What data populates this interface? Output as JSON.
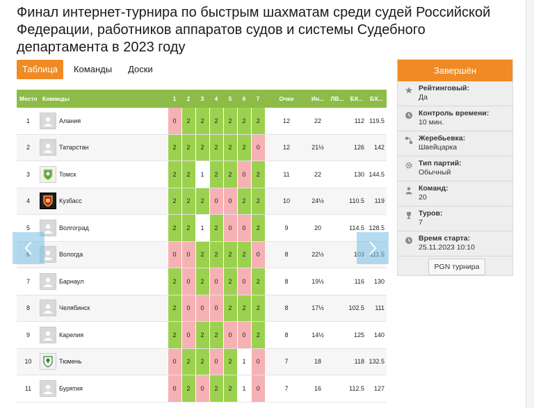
{
  "page": {
    "title": "Финал интернет-турнира по быстрым шахматам среди судей Российской Федерации, работников аппаратов судов и системы Судебного департамента в 2023 году"
  },
  "tabs": [
    {
      "label": "Таблица",
      "active": true
    },
    {
      "label": "Команды",
      "active": false
    },
    {
      "label": "Доски",
      "active": false
    }
  ],
  "table": {
    "headers": {
      "place": "Место",
      "teams": "Команды",
      "rounds": [
        "1",
        "2",
        "3",
        "4",
        "5",
        "6",
        "7"
      ],
      "points": "Очки",
      "ind": "Ин...",
      "lv": "ЛВ...",
      "bh1": "БХ...",
      "bh2": "БХ..."
    },
    "rows": [
      {
        "place": "1",
        "team": "Алания",
        "logo": "placeholder",
        "results": [
          "0",
          "2",
          "2",
          "2",
          "2",
          "2",
          "2"
        ],
        "points": "12",
        "ind": "22",
        "lv": "",
        "bh1": "112",
        "bh2": "119.5"
      },
      {
        "place": "2",
        "team": "Татарстан",
        "logo": "placeholder",
        "results": [
          "2",
          "2",
          "2",
          "2",
          "2",
          "2",
          "0"
        ],
        "points": "12",
        "ind": "21½",
        "lv": "",
        "bh1": "126",
        "bh2": "142"
      },
      {
        "place": "3",
        "team": "Томск",
        "logo": "tomsk-coat",
        "results": [
          "2",
          "2",
          "1",
          "2",
          "2",
          "0",
          "2"
        ],
        "points": "11",
        "ind": "22",
        "lv": "",
        "bh1": "130",
        "bh2": "144.5"
      },
      {
        "place": "4",
        "team": "Кузбасс",
        "logo": "kuzbass-coat",
        "results": [
          "2",
          "2",
          "2",
          "0",
          "0",
          "2",
          "2"
        ],
        "points": "10",
        "ind": "24½",
        "lv": "",
        "bh1": "110.5",
        "bh2": "119"
      },
      {
        "place": "5",
        "team": "Волгоград",
        "logo": "placeholder",
        "results": [
          "2",
          "2",
          "1",
          "2",
          "0",
          "0",
          "2"
        ],
        "points": "9",
        "ind": "20",
        "lv": "",
        "bh1": "114.5",
        "bh2": "128.5"
      },
      {
        "place": "6",
        "team": "Вологда",
        "logo": "placeholder",
        "results": [
          "0",
          "0",
          "2",
          "2",
          "2",
          "2",
          "0"
        ],
        "points": "8",
        "ind": "22½",
        "lv": "",
        "bh1": "103",
        "bh2": "111.5"
      },
      {
        "place": "7",
        "team": "Барнаул",
        "logo": "placeholder",
        "results": [
          "2",
          "0",
          "2",
          "0",
          "2",
          "0",
          "2"
        ],
        "points": "8",
        "ind": "19½",
        "lv": "",
        "bh1": "116",
        "bh2": "130"
      },
      {
        "place": "8",
        "team": "Челябинск",
        "logo": "placeholder",
        "results": [
          "2",
          "0",
          "0",
          "0",
          "2",
          "2",
          "2"
        ],
        "points": "8",
        "ind": "17½",
        "lv": "",
        "bh1": "102.5",
        "bh2": "111"
      },
      {
        "place": "9",
        "team": "Карелия",
        "logo": "placeholder",
        "results": [
          "2",
          "0",
          "2",
          "2",
          "0",
          "0",
          "2"
        ],
        "points": "8",
        "ind": "14½",
        "lv": "",
        "bh1": "125",
        "bh2": "140"
      },
      {
        "place": "10",
        "team": "Тюмень",
        "logo": "tyumen-coat",
        "results": [
          "0",
          "2",
          "2",
          "0",
          "2",
          "1",
          "0"
        ],
        "points": "7",
        "ind": "18",
        "lv": "",
        "bh1": "118",
        "bh2": "132.5"
      },
      {
        "place": "11",
        "team": "Бурятия",
        "logo": "placeholder",
        "results": [
          "0",
          "2",
          "0",
          "2",
          "2",
          "1",
          "0"
        ],
        "points": "7",
        "ind": "16",
        "lv": "",
        "bh1": "112.5",
        "bh2": "127"
      }
    ]
  },
  "carousel": {
    "prev_icon": "chevron-left-icon",
    "next_icon": "chevron-right-icon"
  },
  "sidebar": {
    "status": "Завершён",
    "status_color": "#f08a24",
    "items": [
      {
        "icon": "star-icon",
        "label": "Рейтинговый:",
        "value": "Да"
      },
      {
        "icon": "clock-icon",
        "label": "Контроль времени:",
        "value": "10 мин."
      },
      {
        "icon": "draw-icon",
        "label": "Жеребьевка:",
        "value": "Швейцарка"
      },
      {
        "icon": "gear-icon",
        "label": "Тип партий:",
        "value": "Обычный"
      },
      {
        "icon": "person-icon",
        "label": "Команд:",
        "value": "20"
      },
      {
        "icon": "trophy-icon",
        "label": "Туров:",
        "value": "7"
      },
      {
        "icon": "clock-icon",
        "label": "Время старта:",
        "value": "25.11.2023 10:10"
      }
    ],
    "pgn_button": "PGN турнира"
  },
  "colors": {
    "accent": "#f08a24",
    "header_green": "#8cbc47",
    "win": "#9bd14f",
    "loss": "#f6b1b4",
    "draw": "#ffffff"
  }
}
